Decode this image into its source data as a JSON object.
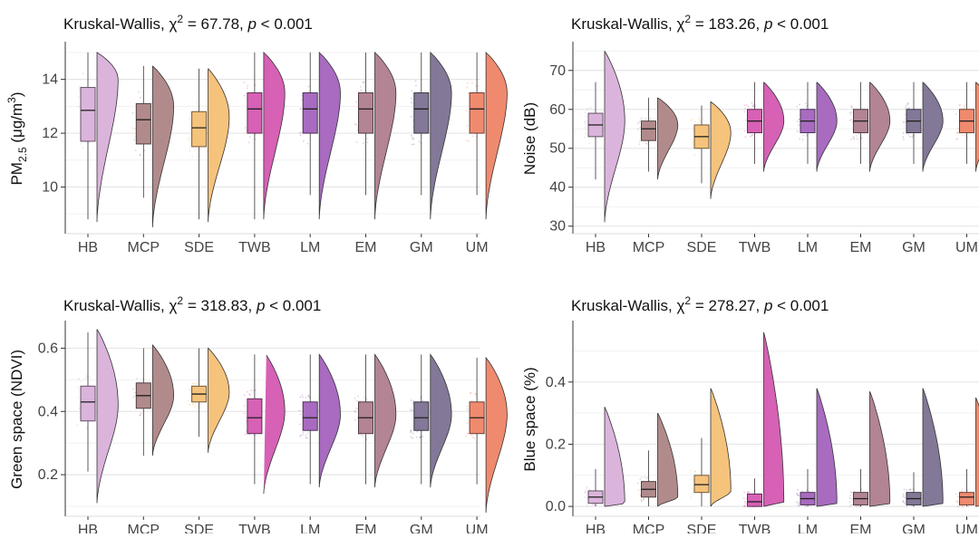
{
  "chart_data": [
    {
      "type": "raincloud",
      "title_prefix": "Kruskal-Wallis, χ",
      "title_sup": "2",
      "title_stat": " = 67.78, ",
      "title_p": "p",
      "title_tail": " < 0.001",
      "ylabel_main": "PM",
      "ylabel_sub": "2.5",
      "ylabel_unit_pre": " (μg/m",
      "ylabel_unit_sup": "3",
      "ylabel_unit_post": ")",
      "ylabel": "",
      "categories": [
        "HB",
        "MCP",
        "SDE",
        "TWB",
        "LM",
        "EM",
        "GM",
        "UM"
      ],
      "ylim": [
        8.4,
        15.2
      ],
      "yticks": [
        10,
        12,
        14
      ],
      "ytick_labels": [
        "10",
        "12",
        "14"
      ],
      "boxes": [
        {
          "min": 8.8,
          "q1": 11.7,
          "median": 12.85,
          "q3": 13.7,
          "max": 15.0
        },
        {
          "min": 9.6,
          "q1": 11.6,
          "median": 12.5,
          "q3": 13.1,
          "max": 14.5
        },
        {
          "min": 8.8,
          "q1": 11.5,
          "median": 12.2,
          "q3": 12.8,
          "max": 14.4
        },
        {
          "min": 8.8,
          "q1": 12.0,
          "median": 12.9,
          "q3": 13.5,
          "max": 15.0
        },
        {
          "min": 9.7,
          "q1": 12.0,
          "median": 12.9,
          "q3": 13.5,
          "max": 15.0
        },
        {
          "min": 9.7,
          "q1": 12.0,
          "median": 12.9,
          "q3": 13.5,
          "max": 15.0
        },
        {
          "min": 9.7,
          "q1": 12.0,
          "median": 12.9,
          "q3": 13.5,
          "max": 15.0
        },
        {
          "min": 9.7,
          "q1": 12.0,
          "median": 12.9,
          "q3": 13.5,
          "max": 15.0
        }
      ],
      "violins": [
        {
          "min": 8.7,
          "max": 15.0,
          "mode": 14.0
        },
        {
          "min": 8.5,
          "max": 14.5,
          "mode": 13.0
        },
        {
          "min": 8.7,
          "max": 14.4,
          "mode": 12.6
        },
        {
          "min": 8.8,
          "max": 15.0,
          "mode": 13.5
        },
        {
          "min": 8.8,
          "max": 15.0,
          "mode": 13.5
        },
        {
          "min": 8.8,
          "max": 15.0,
          "mode": 13.5
        },
        {
          "min": 8.8,
          "max": 15.0,
          "mode": 13.5
        },
        {
          "min": 8.8,
          "max": 15.0,
          "mode": 13.5
        }
      ]
    },
    {
      "type": "raincloud",
      "title_prefix": "Kruskal-Wallis, χ",
      "title_sup": "2",
      "title_stat": " = 183.26, ",
      "title_p": "p",
      "title_tail": " < 0.001",
      "ylabel": "Noise (dB)",
      "categories": [
        "HB",
        "MCP",
        "SDE",
        "TWB",
        "LM",
        "EM",
        "GM",
        "UM"
      ],
      "ylim": [
        29,
        76
      ],
      "yticks": [
        30,
        40,
        50,
        60,
        70
      ],
      "ytick_labels": [
        "30",
        "40",
        "50",
        "60",
        "70"
      ],
      "boxes": [
        {
          "min": 42,
          "q1": 53,
          "median": 56,
          "q3": 59,
          "max": 67
        },
        {
          "min": 44,
          "q1": 52,
          "median": 55,
          "q3": 57,
          "max": 63
        },
        {
          "min": 41,
          "q1": 50,
          "median": 53,
          "q3": 56,
          "max": 61
        },
        {
          "min": 46,
          "q1": 54,
          "median": 57,
          "q3": 60,
          "max": 67
        },
        {
          "min": 46,
          "q1": 54,
          "median": 57,
          "q3": 60,
          "max": 67
        },
        {
          "min": 46,
          "q1": 54,
          "median": 57,
          "q3": 60,
          "max": 67
        },
        {
          "min": 46,
          "q1": 54,
          "median": 57,
          "q3": 60,
          "max": 67
        },
        {
          "min": 46,
          "q1": 54,
          "median": 57,
          "q3": 60,
          "max": 67
        }
      ],
      "violins": [
        {
          "min": 31,
          "max": 75,
          "mode": 57
        },
        {
          "min": 42,
          "max": 63,
          "mode": 56
        },
        {
          "min": 37,
          "max": 62,
          "mode": 54
        },
        {
          "min": 44,
          "max": 67,
          "mode": 57
        },
        {
          "min": 44,
          "max": 67,
          "mode": 57
        },
        {
          "min": 44,
          "max": 67,
          "mode": 57
        },
        {
          "min": 44,
          "max": 67,
          "mode": 57
        },
        {
          "min": 44,
          "max": 67,
          "mode": 57
        }
      ]
    },
    {
      "type": "raincloud",
      "title_prefix": "Kruskal-Wallis, χ",
      "title_sup": "2",
      "title_stat": " = 318.83, ",
      "title_p": "p",
      "title_tail": " < 0.001",
      "ylabel": "Green space (NDVI)",
      "categories": [
        "HB",
        "MCP",
        "SDE",
        "TWB",
        "LM",
        "EM",
        "GM",
        "UM"
      ],
      "ylim": [
        0.08,
        0.67
      ],
      "yticks": [
        0.2,
        0.4,
        0.6
      ],
      "ytick_labels": [
        "0.2",
        "0.4",
        "0.6"
      ],
      "boxes": [
        {
          "min": 0.21,
          "q1": 0.37,
          "median": 0.43,
          "q3": 0.48,
          "max": 0.65
        },
        {
          "min": 0.26,
          "q1": 0.41,
          "median": 0.45,
          "q3": 0.49,
          "max": 0.6
        },
        {
          "min": 0.32,
          "q1": 0.43,
          "median": 0.455,
          "q3": 0.48,
          "max": 0.6
        },
        {
          "min": 0.17,
          "q1": 0.33,
          "median": 0.38,
          "q3": 0.44,
          "max": 0.58
        },
        {
          "min": 0.17,
          "q1": 0.34,
          "median": 0.38,
          "q3": 0.43,
          "max": 0.58
        },
        {
          "min": 0.17,
          "q1": 0.33,
          "median": 0.38,
          "q3": 0.43,
          "max": 0.58
        },
        {
          "min": 0.17,
          "q1": 0.34,
          "median": 0.38,
          "q3": 0.43,
          "max": 0.58
        },
        {
          "min": 0.17,
          "q1": 0.33,
          "median": 0.38,
          "q3": 0.43,
          "max": 0.57
        }
      ],
      "violins": [
        {
          "min": 0.11,
          "max": 0.66,
          "mode": 0.42
        },
        {
          "min": 0.26,
          "max": 0.61,
          "mode": 0.45
        },
        {
          "min": 0.27,
          "max": 0.6,
          "mode": 0.46
        },
        {
          "min": 0.14,
          "max": 0.59,
          "mode": 0.4
        },
        {
          "min": 0.16,
          "max": 0.58,
          "mode": 0.39
        },
        {
          "min": 0.16,
          "max": 0.58,
          "mode": 0.39
        },
        {
          "min": 0.16,
          "max": 0.58,
          "mode": 0.39
        },
        {
          "min": 0.08,
          "max": 0.57,
          "mode": 0.39
        }
      ]
    },
    {
      "type": "raincloud",
      "title_prefix": "Kruskal-Wallis, χ",
      "title_sup": "2",
      "title_stat": " = 278.27, ",
      "title_p": "p",
      "title_tail": " < 0.001",
      "ylabel": "Blue space (%)",
      "categories": [
        "HB",
        "MCP",
        "SDE",
        "TWB",
        "LM",
        "EM",
        "GM",
        "UM"
      ],
      "ylim": [
        -0.02,
        0.58
      ],
      "yticks": [
        0.0,
        0.2,
        0.4
      ],
      "ytick_labels": [
        "0.0",
        "0.2",
        "0.4"
      ],
      "boxes": [
        {
          "min": 0.0,
          "q1": 0.01,
          "median": 0.03,
          "q3": 0.05,
          "max": 0.12
        },
        {
          "min": 0.0,
          "q1": 0.03,
          "median": 0.055,
          "q3": 0.08,
          "max": 0.18
        },
        {
          "min": 0.0,
          "q1": 0.045,
          "median": 0.07,
          "q3": 0.1,
          "max": 0.22
        },
        {
          "min": 0.0,
          "q1": 0.0,
          "median": 0.015,
          "q3": 0.04,
          "max": 0.09
        },
        {
          "min": 0.0,
          "q1": 0.005,
          "median": 0.025,
          "q3": 0.045,
          "max": 0.12
        },
        {
          "min": 0.0,
          "q1": 0.005,
          "median": 0.025,
          "q3": 0.045,
          "max": 0.12
        },
        {
          "min": 0.0,
          "q1": 0.005,
          "median": 0.025,
          "q3": 0.045,
          "max": 0.11
        },
        {
          "min": 0.0,
          "q1": 0.005,
          "median": 0.03,
          "q3": 0.045,
          "max": 0.12
        }
      ],
      "violins": [
        {
          "min": 0.0,
          "max": 0.32,
          "mode": 0.01
        },
        {
          "min": 0.0,
          "max": 0.3,
          "mode": 0.03
        },
        {
          "min": 0.0,
          "max": 0.38,
          "mode": 0.05
        },
        {
          "min": 0.0,
          "max": 0.56,
          "mode": 0.005
        },
        {
          "min": 0.0,
          "max": 0.38,
          "mode": 0.01
        },
        {
          "min": 0.0,
          "max": 0.37,
          "mode": 0.01
        },
        {
          "min": 0.0,
          "max": 0.38,
          "mode": 0.01
        },
        {
          "min": 0.0,
          "max": 0.35,
          "mode": 0.01
        }
      ]
    }
  ],
  "colors": {
    "HB": "#dbb4dc",
    "MCP": "#b18b8b",
    "SDE": "#f6c37c",
    "TWB": "#d661b5",
    "LM": "#a86bc0",
    "EM": "#b38493",
    "GM": "#837897",
    "UM": "#f08a6e",
    "grid": "#e6e6e6",
    "axis": "#333333"
  }
}
